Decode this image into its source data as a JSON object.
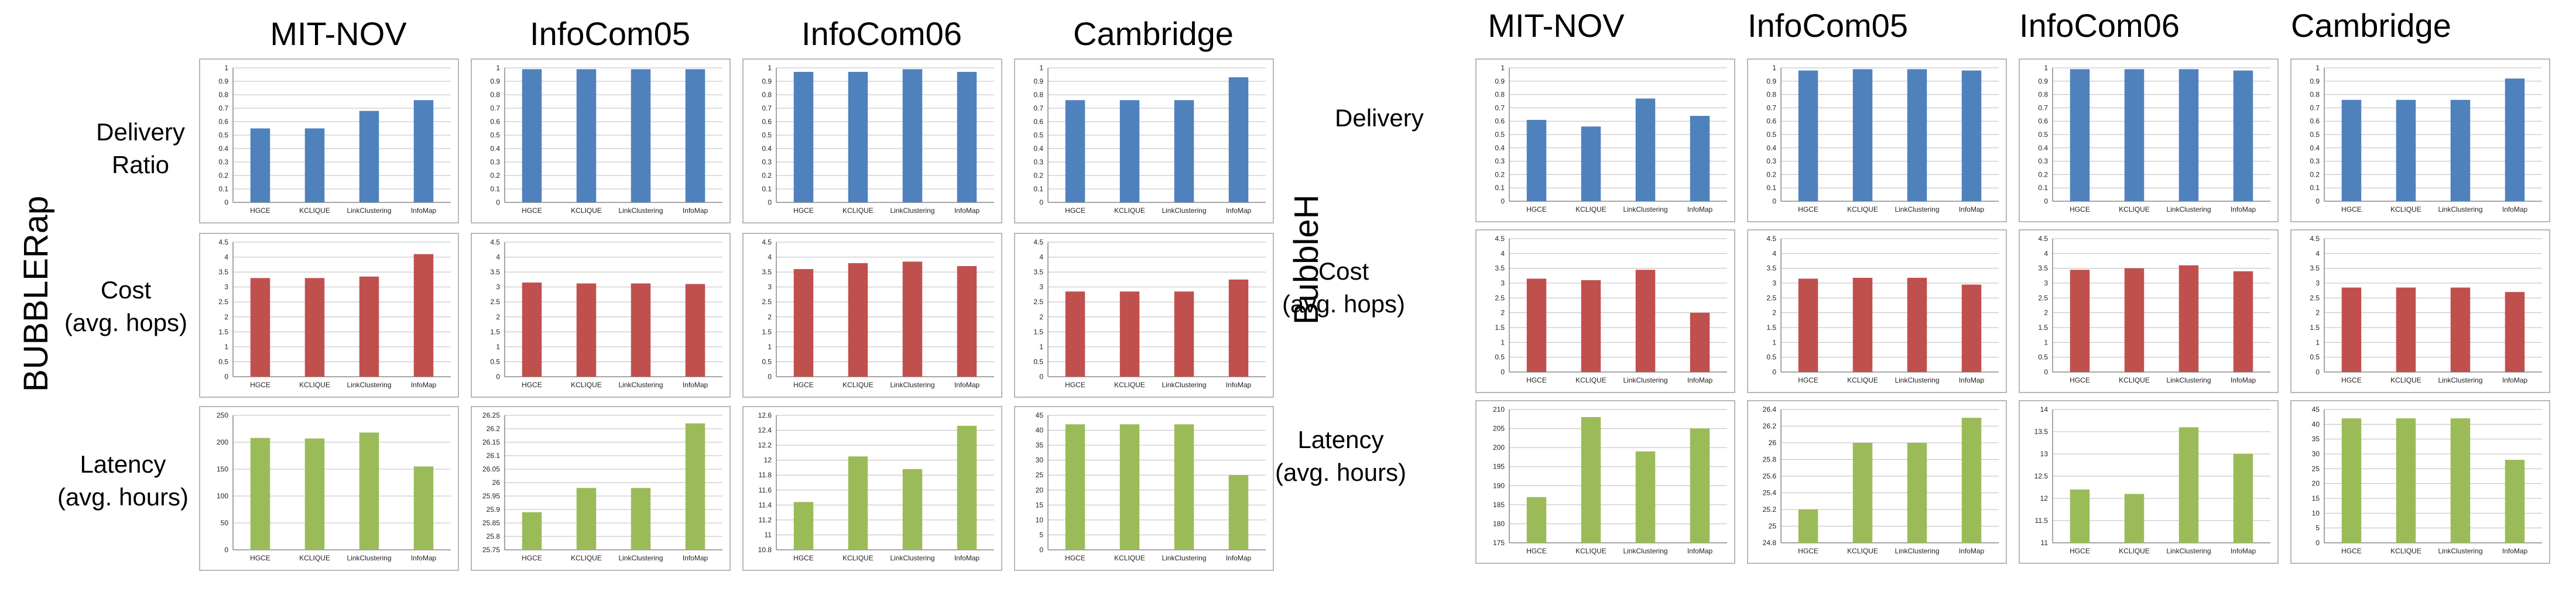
{
  "columns": [
    "MIT-NOV",
    "InfoCom05",
    "InfoCom06",
    "Cambridge"
  ],
  "colors": {
    "delivery": "#4f81bd",
    "cost": "#c0504d",
    "latency": "#9bbb59"
  },
  "groups": [
    {
      "label": "BUBBLERap",
      "row_labels": [
        [
          "Delivery",
          "Ratio"
        ],
        [
          "Cost",
          "(avg. hops)"
        ],
        [
          "Latency",
          "(avg. hours)"
        ]
      ]
    },
    {
      "label": "BubbleH",
      "row_labels": [
        [
          "Delivery"
        ],
        [
          "Cost",
          "(avg. hops)"
        ],
        [
          "Latency",
          "(avg. hours)"
        ]
      ]
    }
  ],
  "chart_data": [
    {
      "type": "bar",
      "group": "BUBBLERap",
      "metric": "delivery",
      "dataset": "MIT-NOV",
      "categories": [
        "HGCE",
        "KCLIQUE",
        "LinkClustering",
        "InfoMap"
      ],
      "values": [
        0.55,
        0.55,
        0.68,
        0.76
      ],
      "ylim": [
        0,
        1
      ],
      "ystep": 0.1,
      "tick_labels": [
        "0",
        "0.1",
        "0.2",
        "0.3",
        "0.4",
        "0.5",
        "0.6",
        "0.7",
        "0.8",
        "0.9",
        "1"
      ]
    },
    {
      "type": "bar",
      "group": "BUBBLERap",
      "metric": "delivery",
      "dataset": "InfoCom05",
      "categories": [
        "HGCE",
        "KCLIQUE",
        "LinkClustering",
        "InfoMap"
      ],
      "values": [
        0.99,
        0.99,
        0.99,
        0.99
      ],
      "ylim": [
        0,
        1
      ],
      "ystep": 0.1,
      "tick_labels": [
        "0",
        "0.1",
        "0.2",
        "0.3",
        "0.4",
        "0.5",
        "0.6",
        "0.7",
        "0.8",
        "0.9",
        "1"
      ]
    },
    {
      "type": "bar",
      "group": "BUBBLERap",
      "metric": "delivery",
      "dataset": "InfoCom06",
      "categories": [
        "HGCE",
        "KCLIQUE",
        "LinkClustering",
        "InfoMap"
      ],
      "values": [
        0.97,
        0.97,
        0.99,
        0.97
      ],
      "ylim": [
        0,
        1
      ],
      "ystep": 0.1,
      "tick_labels": [
        "0",
        "0.1",
        "0.2",
        "0.3",
        "0.4",
        "0.5",
        "0.6",
        "0.7",
        "0.8",
        "0.9",
        "1"
      ]
    },
    {
      "type": "bar",
      "group": "BUBBLERap",
      "metric": "delivery",
      "dataset": "Cambridge",
      "categories": [
        "HGCE",
        "KCLIQUE",
        "LinkClustering",
        "InfoMap"
      ],
      "values": [
        0.76,
        0.76,
        0.76,
        0.93
      ],
      "ylim": [
        0,
        1
      ],
      "ystep": 0.1,
      "tick_labels": [
        "0",
        "0.1",
        "0.2",
        "0.3",
        "0.4",
        "0.5",
        "0.6",
        "0.7",
        "0.8",
        "0.9",
        "1"
      ]
    },
    {
      "type": "bar",
      "group": "BUBBLERap",
      "metric": "cost",
      "dataset": "MIT-NOV",
      "categories": [
        "HGCE",
        "KCLIQUE",
        "LinkClustering",
        "InfoMap"
      ],
      "values": [
        3.3,
        3.3,
        3.35,
        4.1
      ],
      "ylim": [
        0,
        4.5
      ],
      "ystep": 0.5,
      "tick_labels": [
        "0",
        "0.5",
        "1",
        "1.5",
        "2",
        "2.5",
        "3",
        "3.5",
        "4",
        "4.5"
      ]
    },
    {
      "type": "bar",
      "group": "BUBBLERap",
      "metric": "cost",
      "dataset": "InfoCom05",
      "categories": [
        "HGCE",
        "KCLIQUE",
        "LinkClustering",
        "InfoMap"
      ],
      "values": [
        3.15,
        3.12,
        3.12,
        3.1
      ],
      "ylim": [
        0,
        4.5
      ],
      "ystep": 0.5,
      "tick_labels": [
        "0",
        "0.5",
        "1",
        "1.5",
        "2",
        "2.5",
        "3",
        "3.5",
        "4",
        "4.5"
      ]
    },
    {
      "type": "bar",
      "group": "BUBBLERap",
      "metric": "cost",
      "dataset": "InfoCom06",
      "categories": [
        "HGCE",
        "KCLIQUE",
        "LinkClustering",
        "InfoMap"
      ],
      "values": [
        3.6,
        3.8,
        3.85,
        3.7
      ],
      "ylim": [
        0,
        4.5
      ],
      "ystep": 0.5,
      "tick_labels": [
        "0",
        "0.5",
        "1",
        "1.5",
        "2",
        "2.5",
        "3",
        "3.5",
        "4",
        "4.5"
      ]
    },
    {
      "type": "bar",
      "group": "BUBBLERap",
      "metric": "cost",
      "dataset": "Cambridge",
      "categories": [
        "HGCE",
        "KCLIQUE",
        "LinkClustering",
        "InfoMap"
      ],
      "values": [
        2.85,
        2.85,
        2.85,
        3.25
      ],
      "ylim": [
        0,
        4.5
      ],
      "ystep": 0.5,
      "tick_labels": [
        "0",
        "0.5",
        "1",
        "1.5",
        "2",
        "2.5",
        "3",
        "3.5",
        "4",
        "4.5"
      ]
    },
    {
      "type": "bar",
      "group": "BUBBLERap",
      "metric": "latency",
      "dataset": "MIT-NOV",
      "categories": [
        "HGCE",
        "KCLIQUE",
        "LinkClustering",
        "InfoMap"
      ],
      "values": [
        208,
        207,
        218,
        155
      ],
      "ylim": [
        0,
        250
      ],
      "ystep": 50,
      "tick_labels": [
        "0",
        "50",
        "100",
        "150",
        "200",
        "250"
      ]
    },
    {
      "type": "bar",
      "group": "BUBBLERap",
      "metric": "latency",
      "dataset": "InfoCom05",
      "categories": [
        "HGCE",
        "KCLIQUE",
        "LinkClustering",
        "InfoMap"
      ],
      "values": [
        25.89,
        25.98,
        25.98,
        26.22
      ],
      "ylim": [
        25.75,
        26.25
      ],
      "ystep": 0.05,
      "tick_labels": [
        "25.75",
        "25.8",
        "25.85",
        "25.9",
        "25.95",
        "26",
        "26.05",
        "26.1",
        "26.15",
        "26.2",
        "26.25"
      ]
    },
    {
      "type": "bar",
      "group": "BUBBLERap",
      "metric": "latency",
      "dataset": "InfoCom06",
      "categories": [
        "HGCE",
        "KCLIQUE",
        "LinkClustering",
        "InfoMap"
      ],
      "values": [
        11.44,
        12.05,
        11.88,
        12.46
      ],
      "ylim": [
        10.8,
        12.6
      ],
      "ystep": 0.2,
      "tick_labels": [
        "10.8",
        "11",
        "11.2",
        "11.4",
        "11.6",
        "11.8",
        "12",
        "12.2",
        "12.4",
        "12.6"
      ]
    },
    {
      "type": "bar",
      "group": "BUBBLERap",
      "metric": "latency",
      "dataset": "Cambridge",
      "categories": [
        "HGCE",
        "KCLIQUE",
        "LinkClustering",
        "InfoMap"
      ],
      "values": [
        42,
        42,
        42,
        25
      ],
      "ylim": [
        0,
        45
      ],
      "ystep": 5,
      "tick_labels": [
        "0",
        "5",
        "10",
        "15",
        "20",
        "25",
        "30",
        "35",
        "40",
        "45"
      ]
    },
    {
      "type": "bar",
      "group": "BubbleH",
      "metric": "delivery",
      "dataset": "MIT-NOV",
      "categories": [
        "HGCE",
        "KCLIQUE",
        "LinkClustering",
        "InfoMap"
      ],
      "values": [
        0.61,
        0.56,
        0.77,
        0.64
      ],
      "ylim": [
        0,
        1
      ],
      "ystep": 0.1,
      "tick_labels": [
        "0",
        "0.1",
        "0.2",
        "0.3",
        "0.4",
        "0.5",
        "0.6",
        "0.7",
        "0.8",
        "0.9",
        "1"
      ]
    },
    {
      "type": "bar",
      "group": "BubbleH",
      "metric": "delivery",
      "dataset": "InfoCom05",
      "categories": [
        "HGCE",
        "KCLIQUE",
        "LinkClustering",
        "InfoMap"
      ],
      "values": [
        0.98,
        0.99,
        0.99,
        0.98
      ],
      "ylim": [
        0,
        1
      ],
      "ystep": 0.1,
      "tick_labels": [
        "0",
        "0.1",
        "0.2",
        "0.3",
        "0.4",
        "0.5",
        "0.6",
        "0.7",
        "0.8",
        "0.9",
        "1"
      ]
    },
    {
      "type": "bar",
      "group": "BubbleH",
      "metric": "delivery",
      "dataset": "InfoCom06",
      "categories": [
        "HGCE",
        "KCLIQUE",
        "LinkClustering",
        "InfoMap"
      ],
      "values": [
        0.99,
        0.99,
        0.99,
        0.98
      ],
      "ylim": [
        0,
        1
      ],
      "ystep": 0.1,
      "tick_labels": [
        "0",
        "0.1",
        "0.2",
        "0.3",
        "0.4",
        "0.5",
        "0.6",
        "0.7",
        "0.8",
        "0.9",
        "1"
      ]
    },
    {
      "type": "bar",
      "group": "BubbleH",
      "metric": "delivery",
      "dataset": "Cambridge",
      "categories": [
        "HGCE",
        "KCLIQUE",
        "LinkClustering",
        "InfoMap"
      ],
      "values": [
        0.76,
        0.76,
        0.76,
        0.92
      ],
      "ylim": [
        0,
        1
      ],
      "ystep": 0.1,
      "tick_labels": [
        "0",
        "0.1",
        "0.2",
        "0.3",
        "0.4",
        "0.5",
        "0.6",
        "0.7",
        "0.8",
        "0.9",
        "1"
      ]
    },
    {
      "type": "bar",
      "group": "BubbleH",
      "metric": "cost",
      "dataset": "MIT-NOV",
      "categories": [
        "HGCE",
        "KCLIQUE",
        "LinkClustering",
        "InfoMap"
      ],
      "values": [
        3.15,
        3.1,
        3.45,
        2.0
      ],
      "ylim": [
        0,
        4.5
      ],
      "ystep": 0.5,
      "tick_labels": [
        "0",
        "0.5",
        "1",
        "1.5",
        "2",
        "2.5",
        "3",
        "3.5",
        "4",
        "4.5"
      ]
    },
    {
      "type": "bar",
      "group": "BubbleH",
      "metric": "cost",
      "dataset": "InfoCom05",
      "categories": [
        "HGCE",
        "KCLIQUE",
        "LinkClustering",
        "InfoMap"
      ],
      "values": [
        3.15,
        3.18,
        3.18,
        2.95
      ],
      "ylim": [
        0,
        4.5
      ],
      "ystep": 0.5,
      "tick_labels": [
        "0",
        "0.5",
        "1",
        "1.5",
        "2",
        "2.5",
        "3",
        "3.5",
        "4",
        "4.5"
      ]
    },
    {
      "type": "bar",
      "group": "BubbleH",
      "metric": "cost",
      "dataset": "InfoCom06",
      "categories": [
        "HGCE",
        "KCLIQUE",
        "LinkClustering",
        "InfoMap"
      ],
      "values": [
        3.45,
        3.5,
        3.6,
        3.4
      ],
      "ylim": [
        0,
        4.5
      ],
      "ystep": 0.5,
      "tick_labels": [
        "0",
        "0.5",
        "1",
        "1.5",
        "2",
        "2.5",
        "3",
        "3.5",
        "4",
        "4.5"
      ]
    },
    {
      "type": "bar",
      "group": "BubbleH",
      "metric": "cost",
      "dataset": "Cambridge",
      "categories": [
        "HGCE",
        "KCLIQUE",
        "LinkClustering",
        "InfoMap"
      ],
      "values": [
        2.85,
        2.85,
        2.85,
        2.7
      ],
      "ylim": [
        0,
        4.5
      ],
      "ystep": 0.5,
      "tick_labels": [
        "0",
        "0.5",
        "1",
        "1.5",
        "2",
        "2.5",
        "3",
        "3.5",
        "4",
        "4.5"
      ]
    },
    {
      "type": "bar",
      "group": "BubbleH",
      "metric": "latency",
      "dataset": "MIT-NOV",
      "categories": [
        "HGCE",
        "KCLIQUE",
        "LinkClustering",
        "InfoMap"
      ],
      "values": [
        187,
        208,
        199,
        205
      ],
      "ylim": [
        175,
        210
      ],
      "ystep": 5,
      "tick_labels": [
        "175",
        "180",
        "185",
        "190",
        "195",
        "200",
        "205",
        "210"
      ]
    },
    {
      "type": "bar",
      "group": "BubbleH",
      "metric": "latency",
      "dataset": "InfoCom05",
      "categories": [
        "HGCE",
        "KCLIQUE",
        "LinkClustering",
        "InfoMap"
      ],
      "values": [
        25.2,
        26.0,
        26.0,
        26.3
      ],
      "ylim": [
        24.8,
        26.4
      ],
      "ystep": 0.2,
      "tick_labels": [
        "24.8",
        "25",
        "25.2",
        "25.4",
        "25.6",
        "25.8",
        "26",
        "26.2",
        "26.4"
      ]
    },
    {
      "type": "bar",
      "group": "BubbleH",
      "metric": "latency",
      "dataset": "InfoCom06",
      "categories": [
        "HGCE",
        "KCLIQUE",
        "LinkClustering",
        "InfoMap"
      ],
      "values": [
        12.2,
        12.1,
        13.6,
        13.0
      ],
      "ylim": [
        11,
        14
      ],
      "ystep": 0.5,
      "tick_labels": [
        "11",
        "11.5",
        "12",
        "12.5",
        "13",
        "13.5",
        "14"
      ]
    },
    {
      "type": "bar",
      "group": "BubbleH",
      "metric": "latency",
      "dataset": "Cambridge",
      "categories": [
        "HGCE",
        "KCLIQUE",
        "LinkClustering",
        "InfoMap"
      ],
      "values": [
        42,
        42,
        42,
        28
      ],
      "ylim": [
        0,
        45
      ],
      "ystep": 5,
      "tick_labels": [
        "0",
        "5",
        "10",
        "15",
        "20",
        "25",
        "30",
        "35",
        "40",
        "45"
      ]
    }
  ]
}
